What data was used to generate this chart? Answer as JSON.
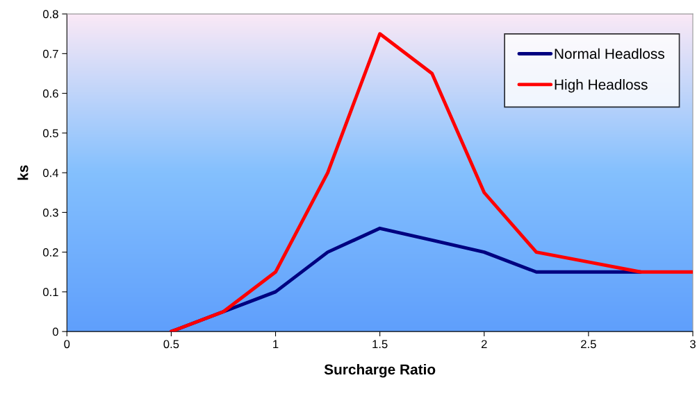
{
  "chart_data": {
    "type": "line",
    "xlabel": "Surcharge Ratio",
    "ylabel": "ks",
    "x": [
      0.5,
      0.75,
      1,
      1.25,
      1.5,
      1.75,
      2,
      2.25,
      2.5,
      2.75,
      3
    ],
    "series": [
      {
        "name": "Normal Headloss",
        "color": "#000080",
        "values": [
          0,
          0.05,
          0.1,
          0.2,
          0.26,
          0.23,
          0.2,
          0.15,
          0.15,
          0.15,
          null
        ]
      },
      {
        "name": "High Headloss",
        "color": "#ff0000",
        "values": [
          0,
          0.05,
          0.15,
          0.4,
          0.75,
          0.65,
          0.35,
          0.2,
          0.175,
          0.15,
          0.15
        ]
      }
    ],
    "xlim": [
      0,
      3
    ],
    "xticks": [
      0,
      0.5,
      1,
      1.5,
      2,
      2.5,
      3
    ],
    "ylim": [
      0,
      0.8
    ],
    "yticks": [
      0,
      0.1,
      0.2,
      0.3,
      0.4,
      0.5,
      0.6,
      0.7,
      0.8
    ],
    "grid": false,
    "legend": "top right",
    "marker": "none",
    "line_style": "solid"
  }
}
